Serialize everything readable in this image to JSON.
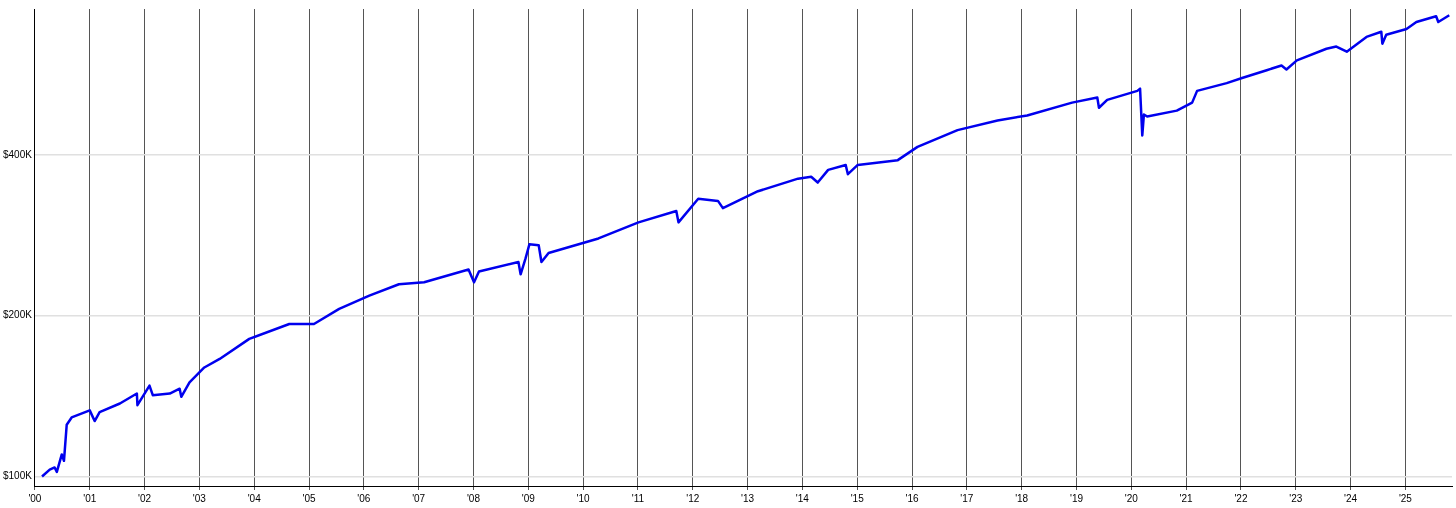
{
  "chart_data": {
    "type": "line",
    "log": "y",
    "grid": true,
    "legend": false,
    "color": "#0000ee",
    "x": [
      2000.13,
      2000.27,
      2000.36,
      2000.4,
      2000.49,
      2000.53,
      2000.58,
      2000.67,
      2001.0,
      2001.09,
      2001.18,
      2001.55,
      2001.86,
      2001.87,
      2002.09,
      2002.15,
      2002.46,
      2002.64,
      2002.67,
      2002.82,
      2003.09,
      2003.37,
      2003.91,
      2004.64,
      2005.09,
      2005.55,
      2006.1,
      2006.64,
      2007.1,
      2007.91,
      2008.01,
      2008.1,
      2008.82,
      2008.86,
      2008.95,
      2009.02,
      2009.19,
      2009.24,
      2009.37,
      2010.28,
      2011.01,
      2011.7,
      2011.74,
      2012.1,
      2012.46,
      2012.55,
      2013.19,
      2013.92,
      2014.16,
      2014.28,
      2014.47,
      2014.79,
      2014.83,
      2015.01,
      2015.74,
      2016.1,
      2016.83,
      2017.56,
      2018.1,
      2018.92,
      2019.38,
      2019.41,
      2019.56,
      2020.11,
      2020.16,
      2020.2,
      2020.23,
      2020.29,
      2020.83,
      2021.11,
      2021.2,
      2021.74,
      2022.02,
      2022.47,
      2022.74,
      2022.83,
      2023.02,
      2023.56,
      2023.74,
      2023.93,
      2024.29,
      2024.56,
      2024.58,
      2024.65,
      2025.02,
      2025.2,
      2025.56,
      2025.6,
      2025.8
    ],
    "values": [
      100000,
      103000,
      104000,
      102000,
      110000,
      107000,
      125000,
      129000,
      133000,
      127000,
      132000,
      137000,
      143000,
      136000,
      148000,
      142000,
      143000,
      146000,
      141000,
      150000,
      160000,
      166000,
      181000,
      193000,
      193000,
      206000,
      218000,
      229000,
      231000,
      244000,
      231000,
      242000,
      252000,
      239000,
      256000,
      272000,
      271000,
      252000,
      262000,
      279000,
      299000,
      314000,
      299000,
      331000,
      328000,
      318000,
      342000,
      361000,
      364000,
      355000,
      375000,
      383000,
      368000,
      383000,
      391000,
      414000,
      445000,
      464000,
      474000,
      501000,
      512000,
      490000,
      507000,
      527000,
      532000,
      435000,
      476000,
      472000,
      484000,
      501000,
      527000,
      545000,
      557000,
      576000,
      588000,
      578000,
      601000,
      632000,
      638000,
      624000,
      665000,
      680000,
      646000,
      671000,
      688000,
      709000,
      727000,
      709000,
      730000
    ],
    "xlim": [
      2000,
      2025.85
    ],
    "xticks": [
      {
        "value": 2000,
        "label": "'00"
      },
      {
        "value": 2001,
        "label": "'01"
      },
      {
        "value": 2002,
        "label": "'02"
      },
      {
        "value": 2003,
        "label": "'03"
      },
      {
        "value": 2004,
        "label": "'04"
      },
      {
        "value": 2005,
        "label": "'05"
      },
      {
        "value": 2006,
        "label": "'06"
      },
      {
        "value": 2007,
        "label": "'07"
      },
      {
        "value": 2008,
        "label": "'08"
      },
      {
        "value": 2009,
        "label": "'09"
      },
      {
        "value": 2010,
        "label": "'10"
      },
      {
        "value": 2011,
        "label": "'11"
      },
      {
        "value": 2012,
        "label": "'12"
      },
      {
        "value": 2013,
        "label": "'13"
      },
      {
        "value": 2014,
        "label": "'14"
      },
      {
        "value": 2015,
        "label": "'15"
      },
      {
        "value": 2016,
        "label": "'16"
      },
      {
        "value": 2017,
        "label": "'17"
      },
      {
        "value": 2018,
        "label": "'18"
      },
      {
        "value": 2019,
        "label": "'19"
      },
      {
        "value": 2020,
        "label": "'20"
      },
      {
        "value": 2021,
        "label": "'21"
      },
      {
        "value": 2022,
        "label": "'22"
      },
      {
        "value": 2023,
        "label": "'23"
      },
      {
        "value": 2024,
        "label": "'24"
      },
      {
        "value": 2025,
        "label": "'25"
      }
    ],
    "ylim": [
      96000,
      750000
    ],
    "yticks": [
      {
        "value": 100000,
        "label": "$100K"
      },
      {
        "value": 200000,
        "label": "$200K"
      },
      {
        "value": 400000,
        "label": "$400K"
      }
    ]
  }
}
